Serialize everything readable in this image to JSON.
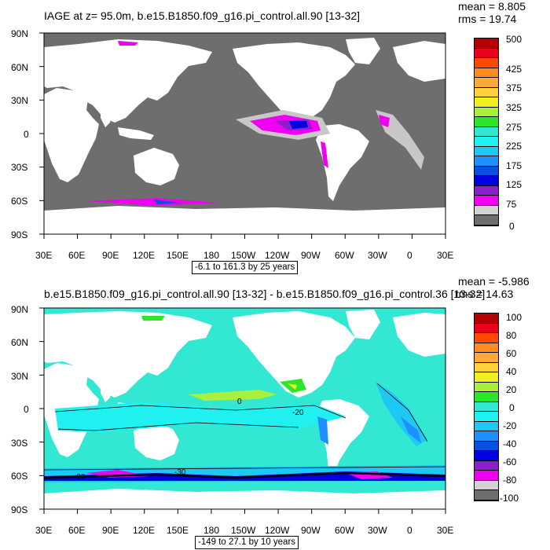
{
  "colors": {
    "land": "#ffffff",
    "mask_dark": "#6e6e6e",
    "mask_light": "#c8c8c8",
    "ocean_zero": "#33e8d2"
  },
  "panel1": {
    "title": "IAGE at z=  95.0m, b.e15.B1850.f09_g16.pi_control.all.90 [13-32]",
    "mean": "mean = 8.805",
    "rms": "rms = 19.74",
    "range": "-6.1 to 161.3 by 25 years",
    "y_ticks": [
      "90N",
      "60N",
      "30N",
      "0",
      "30S",
      "60S",
      "90S"
    ],
    "x_ticks": [
      "30E",
      "60E",
      "90E",
      "120E",
      "150E",
      "180",
      "150W",
      "120W",
      "90W",
      "60W",
      "30W",
      "0",
      "30E"
    ],
    "colorbar_labels": [
      "500",
      "425",
      "375",
      "325",
      "275",
      "225",
      "175",
      "125",
      "75",
      "0"
    ],
    "colorbar_colors": [
      "#b40000",
      "#e8001e",
      "#ff4800",
      "#ff8c1e",
      "#ffa83c",
      "#ffd23c",
      "#f0f020",
      "#a8f03c",
      "#2ce62c",
      "#33e8d2",
      "#20f0f0",
      "#1ec8f5",
      "#1e90ff",
      "#0a50e0",
      "#0000e0",
      "#8c1ecd",
      "#f000f0",
      "#d2d2d2",
      "#6e6e6e"
    ]
  },
  "panel2": {
    "title": "b.e15.B1850.f09_g16.pi_control.all.90 [13-32] - b.e15.B1850.f09_g16.pi_control.36 [13-32]",
    "mean": "mean = -5.986",
    "rms": "rms = 14.63",
    "range": "-149 to 27.1 by 10 years",
    "y_ticks": [
      "90N",
      "60N",
      "30N",
      "0",
      "30S",
      "60S",
      "90S"
    ],
    "x_ticks": [
      "30E",
      "60E",
      "90E",
      "120E",
      "150E",
      "180",
      "150W",
      "120W",
      "90W",
      "60W",
      "30W",
      "0",
      "30E"
    ],
    "colorbar_labels": [
      "100",
      "80",
      "60",
      "40",
      "20",
      "0",
      "-20",
      "-40",
      "-60",
      "-80",
      "-100"
    ],
    "colorbar_colors": [
      "#b40000",
      "#e8001e",
      "#ff4800",
      "#ff8c1e",
      "#ffa83c",
      "#ffd23c",
      "#f0f020",
      "#a8f03c",
      "#2ce62c",
      "#33e8d2",
      "#20f0f0",
      "#1ec8f5",
      "#1e90ff",
      "#0a50e0",
      "#0000e0",
      "#8c1ecd",
      "#f000f0",
      "#d2d2d2",
      "#6e6e6e"
    ],
    "contour_labels": [
      "0",
      "-20",
      "-30",
      "-30"
    ]
  }
}
